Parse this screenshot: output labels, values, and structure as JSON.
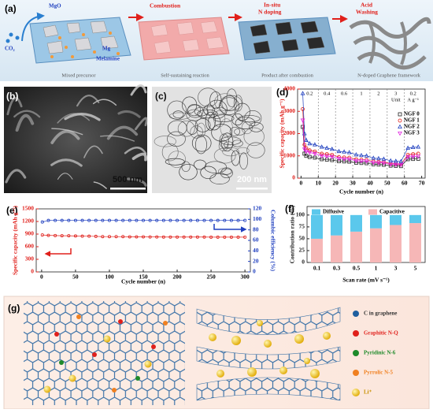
{
  "figure_a": {
    "label": "(a)",
    "mgo": "MgO",
    "co2": "CO₂",
    "mg": "Mg",
    "melamine": "Melamine",
    "steps": [
      [
        "Combustion"
      ],
      [
        "In-situ",
        "N doping"
      ],
      [
        "Acid",
        "Washing"
      ]
    ],
    "stages": [
      "Mixed precursor",
      "Self-sustaining reaction",
      "Product after combustion",
      "N-doped Graphene framework"
    ]
  },
  "figure_b": {
    "label": "(b)",
    "scale_bar": "500 nm"
  },
  "figure_c": {
    "label": "(c)",
    "scale_bar": "200 nm"
  },
  "figure_g": {
    "label": "(g)",
    "legend": [
      "C in graphene",
      "Graphitic N-Q",
      "Pyridinic N-6",
      "Pyrrolic N-5",
      "Li⁺"
    ]
  },
  "chart_data": [
    {
      "type": "line",
      "panel_label": "(d)",
      "xlabel": "Cycle number (n)",
      "ylabel": "Specific capacity (mAh g⁻¹)",
      "y_axis_color": "#e0201b",
      "x": [
        1,
        2,
        3,
        5,
        8,
        12,
        15,
        18,
        22,
        25,
        28,
        32,
        35,
        38,
        42,
        45,
        48,
        52,
        55,
        58,
        62,
        65,
        68
      ],
      "xlim": [
        -2,
        72
      ],
      "xticks": [
        0,
        10,
        20,
        30,
        40,
        50,
        60,
        70
      ],
      "ylim": [
        0,
        4000
      ],
      "yticks": [
        0,
        1000,
        2000,
        3000,
        4000
      ],
      "separators": true,
      "legend": "right",
      "rate_labels": [
        "0.2",
        "0.4",
        "0.6",
        "1",
        "2",
        "3",
        "0.2"
      ],
      "unit_label": [
        "Unit",
        "A g⁻¹"
      ],
      "series": [
        {
          "name": "NGF 0",
          "color": "#222222",
          "marker": "square",
          "values": [
            2300,
            1100,
            1000,
            950,
            920,
            850,
            830,
            810,
            760,
            750,
            740,
            690,
            680,
            670,
            620,
            610,
            600,
            560,
            550,
            540,
            850,
            860,
            870
          ]
        },
        {
          "name": "NGF 1",
          "color": "#e0201b",
          "marker": "circle",
          "values": [
            3100,
            1500,
            1350,
            1250,
            1200,
            1100,
            1080,
            1050,
            950,
            930,
            920,
            850,
            830,
            820,
            750,
            730,
            720,
            650,
            640,
            630,
            1050,
            1080,
            1100
          ]
        },
        {
          "name": "NGF 2",
          "color": "#1f3fbf",
          "marker": "triangle-up",
          "values": [
            3800,
            2000,
            1700,
            1550,
            1500,
            1400,
            1350,
            1300,
            1200,
            1180,
            1150,
            1050,
            1020,
            1000,
            900,
            880,
            860,
            780,
            760,
            750,
            1350,
            1380,
            1400
          ]
        },
        {
          "name": "NGF 3",
          "color": "#e020e0",
          "marker": "triangle-down",
          "values": [
            2600,
            1300,
            1200,
            1150,
            1100,
            1000,
            980,
            960,
            880,
            860,
            850,
            780,
            770,
            760,
            700,
            690,
            680,
            620,
            610,
            600,
            950,
            970,
            980
          ]
        }
      ]
    },
    {
      "type": "line",
      "panel_label": "(e)",
      "xlabel": "Cycle number (n)",
      "ylabel": "Specific capacity (mAh g⁻¹)",
      "y2label": "Columbic efficiency (%)",
      "y_axis_color": "#e0201b",
      "y2_axis_color": "#1f3fbf",
      "x": [
        1,
        10,
        20,
        30,
        40,
        50,
        60,
        70,
        80,
        90,
        100,
        110,
        120,
        130,
        140,
        150,
        160,
        170,
        180,
        190,
        200,
        210,
        220,
        230,
        240,
        250,
        260,
        270,
        280,
        290,
        300
      ],
      "xlim": [
        -8,
        308
      ],
      "xticks": [
        0,
        50,
        100,
        150,
        200,
        250,
        300
      ],
      "ylim": [
        0,
        1500
      ],
      "yticks": [
        0,
        300,
        600,
        900,
        1200,
        1500
      ],
      "y2lim": [
        0,
        120
      ],
      "y2ticks": [
        0,
        20,
        40,
        60,
        80,
        100,
        120
      ],
      "series": [
        {
          "color": "#e0201b",
          "marker": "circle",
          "values": [
            880,
            870,
            865,
            860,
            860,
            855,
            850,
            850,
            845,
            840,
            840,
            840,
            838,
            835,
            835,
            835,
            833,
            832,
            830,
            830,
            830,
            830,
            830,
            830,
            830,
            828,
            828,
            828,
            828,
            828,
            828
          ]
        },
        {
          "color": "#1f3fbf",
          "marker": "circle",
          "axis": "y2",
          "values": [
            95,
            98,
            98,
            98,
            98,
            98,
            98,
            98,
            98,
            98,
            98,
            98,
            98,
            98,
            98,
            98,
            98,
            98,
            98,
            98,
            98,
            98,
            98,
            98,
            98,
            98,
            98,
            98,
            98,
            98,
            98
          ]
        }
      ]
    },
    {
      "type": "bar",
      "panel_label": "(f)",
      "xlabel": "Scan rate (mV s⁻¹)",
      "ylabel": "Contribution ratio (%)",
      "stacked": true,
      "legend": "top",
      "categories": [
        "0.1",
        "0.3",
        "0.5",
        "1",
        "3",
        "5"
      ],
      "ylim": [
        0,
        118
      ],
      "yticks": [
        0,
        25,
        50,
        75,
        100
      ],
      "series": [
        {
          "name": "Diffusive",
          "color": "#5bc8ec",
          "values": [
            50,
            43,
            35,
            28,
            21,
            17
          ]
        },
        {
          "name": "Capacitive",
          "color": "#f6b7b7",
          "values": [
            50,
            57,
            65,
            72,
            79,
            83
          ]
        }
      ]
    }
  ]
}
